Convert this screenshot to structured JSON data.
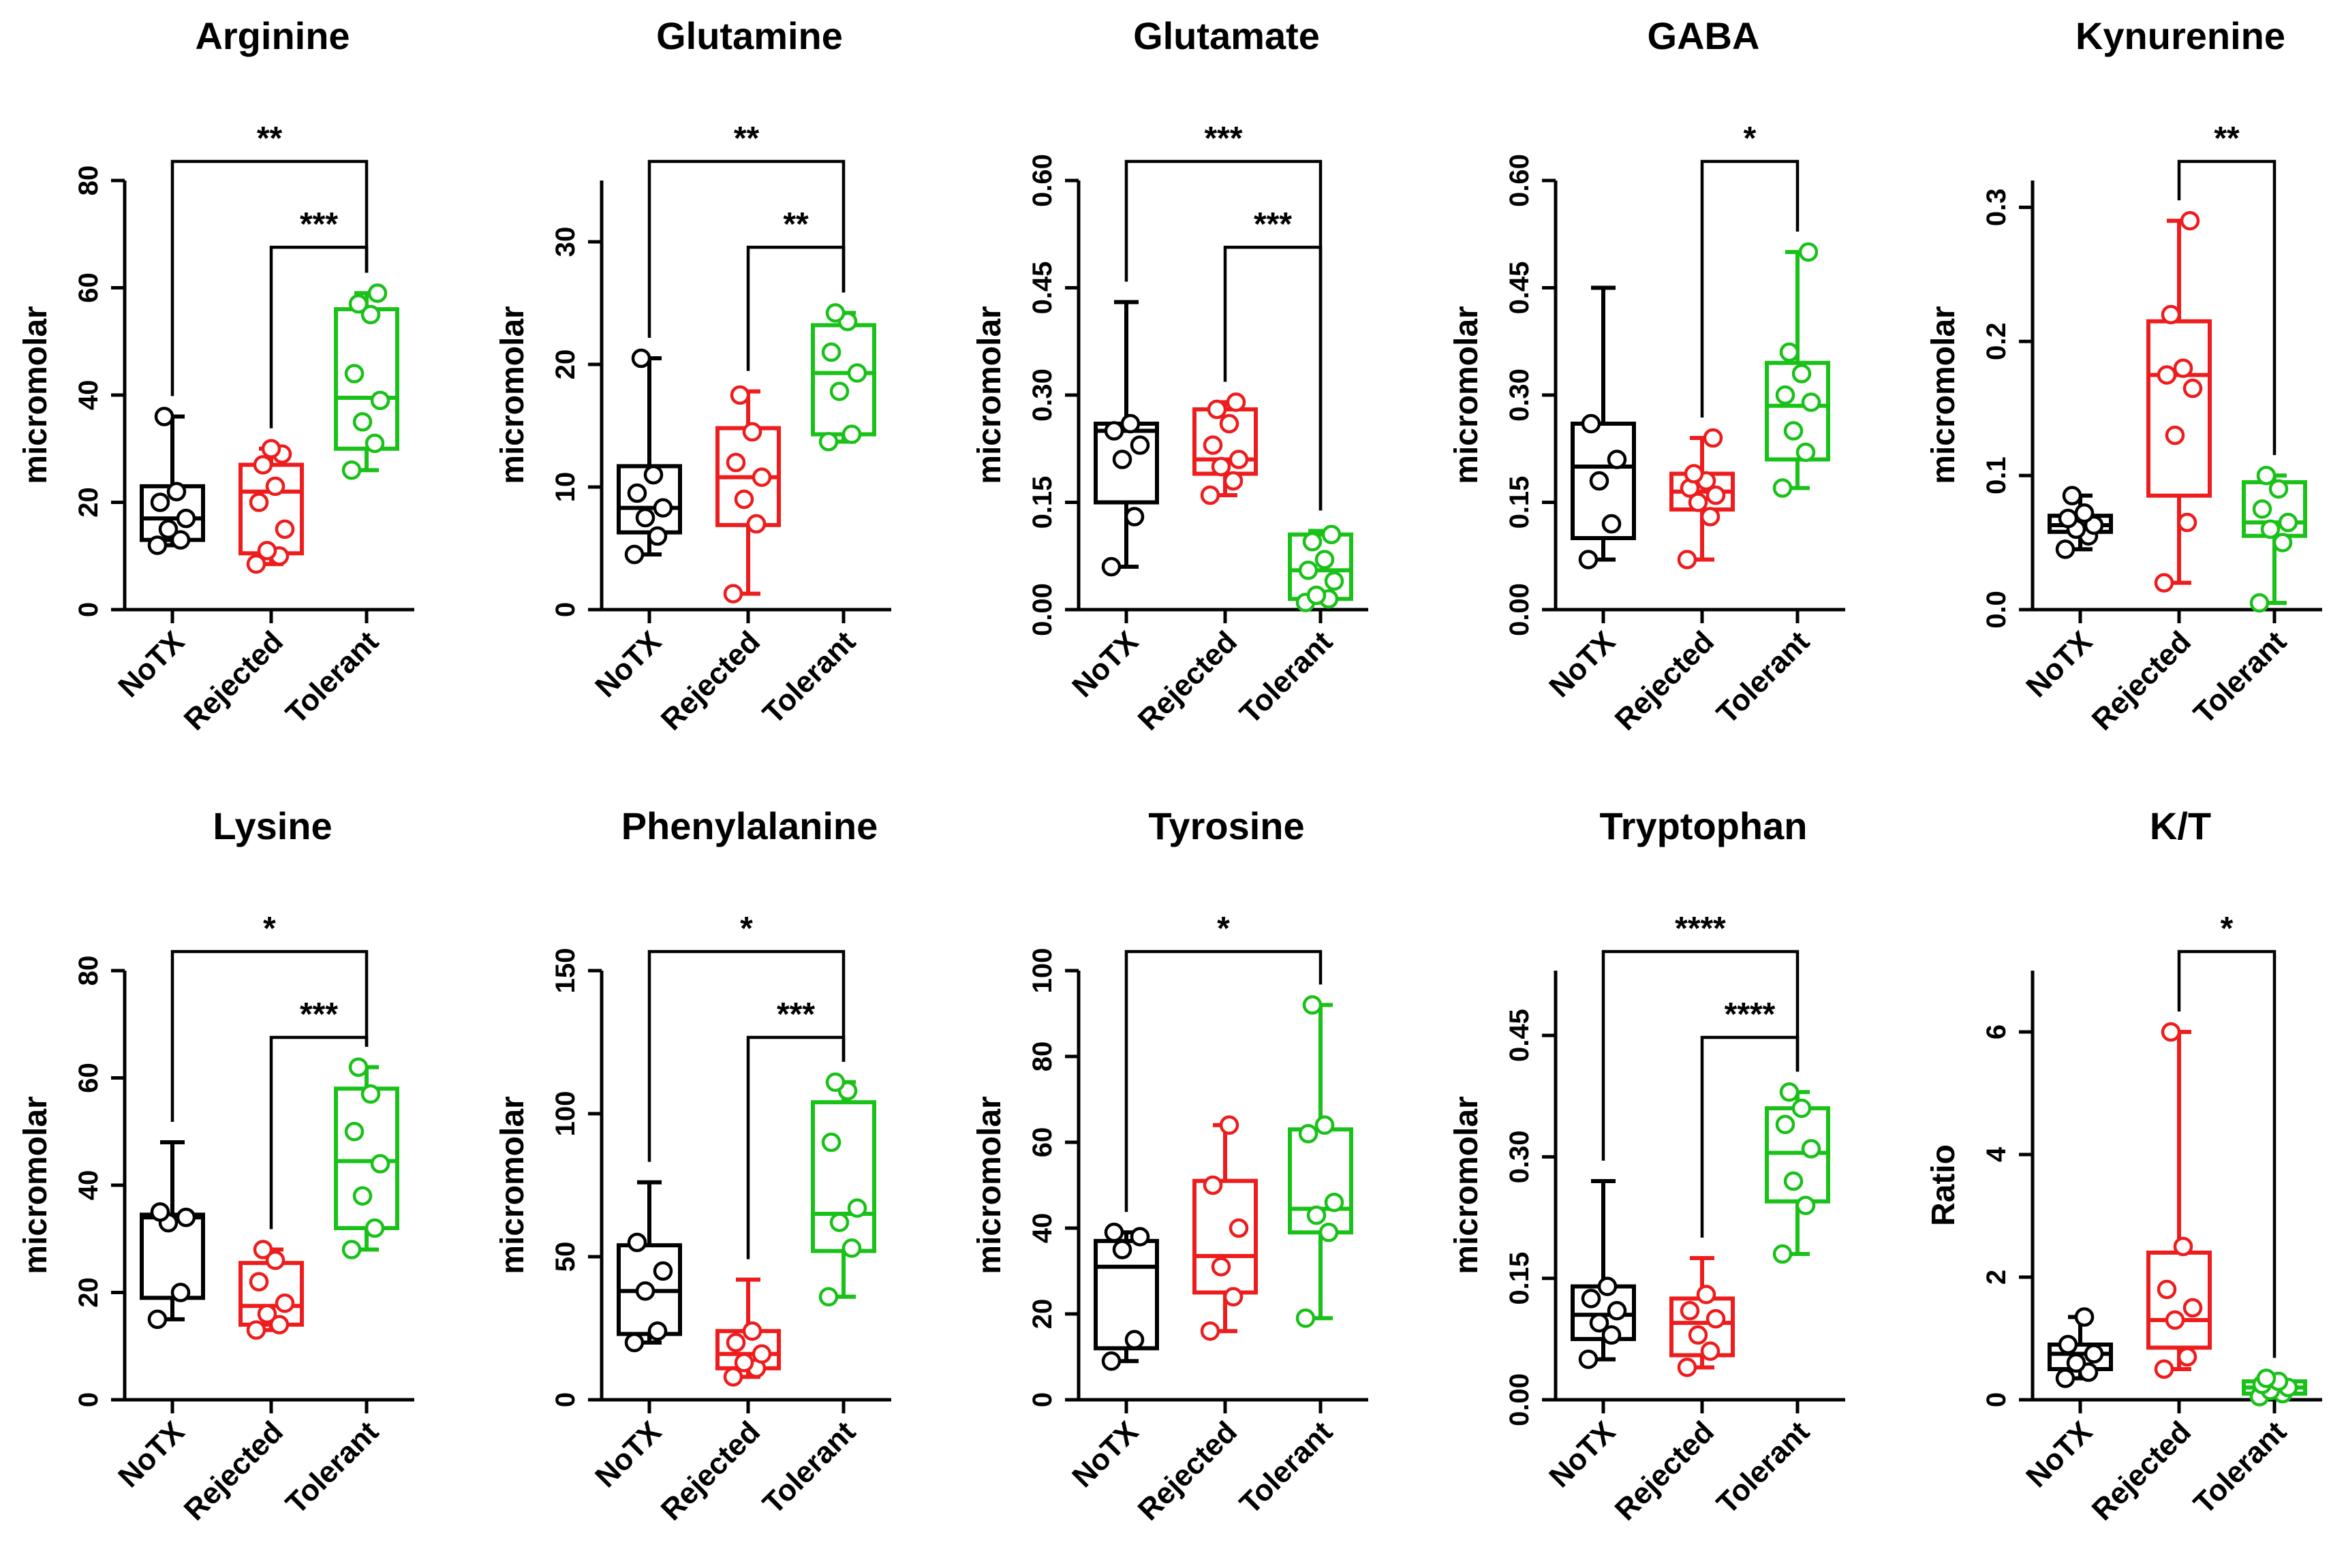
{
  "figure": {
    "group_labels": [
      "NoTX",
      "Rejected",
      "Tolerant"
    ],
    "group_colors": [
      "#000000",
      "#ee1c1c",
      "#19c119"
    ]
  },
  "chart_data": [
    {
      "type": "box",
      "title": "Arginine",
      "ylabel": "micromolar",
      "ylim": [
        0,
        80
      ],
      "yticks": [
        0,
        20,
        40,
        60,
        80
      ],
      "categories": [
        "NoTX",
        "Rejected",
        "Tolerant"
      ],
      "boxes": [
        {
          "min": 12,
          "q1": 13,
          "median": 17,
          "q3": 23,
          "max": 36,
          "points": [
            12,
            13,
            15,
            17,
            20,
            22,
            36
          ]
        },
        {
          "min": 8.5,
          "q1": 10.5,
          "median": 22,
          "q3": 27,
          "max": 30,
          "points": [
            8.5,
            10,
            11,
            15,
            20,
            23,
            27,
            29,
            30
          ]
        },
        {
          "min": 26,
          "q1": 30,
          "median": 39.5,
          "q3": 56,
          "max": 59,
          "points": [
            26,
            31,
            35,
            39,
            44,
            55,
            57,
            59
          ]
        }
      ],
      "significance": [
        {
          "from": 0,
          "to": 2,
          "label": "**"
        },
        {
          "from": 1,
          "to": 2,
          "label": "***"
        }
      ]
    },
    {
      "type": "box",
      "title": "Glutamine",
      "ylabel": "micromolar",
      "ylim": [
        0,
        35
      ],
      "yticks": [
        0,
        10,
        20,
        30
      ],
      "categories": [
        "NoTX",
        "Rejected",
        "Tolerant"
      ],
      "boxes": [
        {
          "min": 4.5,
          "q1": 6.3,
          "median": 8.3,
          "q3": 11.7,
          "max": 20.5,
          "points": [
            4.5,
            6,
            7.5,
            8.3,
            9.5,
            11,
            20.5
          ]
        },
        {
          "min": 1.3,
          "q1": 6.9,
          "median": 10.8,
          "q3": 14.8,
          "max": 17.8,
          "points": [
            1.3,
            7,
            9,
            10.8,
            12,
            14.5,
            17.5
          ]
        },
        {
          "min": 13.7,
          "q1": 14.3,
          "median": 19.3,
          "q3": 23.2,
          "max": 24.2,
          "points": [
            13.7,
            14.3,
            17.8,
            19.3,
            21,
            23.5,
            24.2
          ]
        }
      ],
      "significance": [
        {
          "from": 0,
          "to": 2,
          "label": "**"
        },
        {
          "from": 1,
          "to": 2,
          "label": "**"
        }
      ]
    },
    {
      "type": "box",
      "title": "Glutamate",
      "ylabel": "micromolar",
      "ylim": [
        0,
        0.6
      ],
      "yticks": [
        0.0,
        0.15,
        0.3,
        0.45,
        0.6
      ],
      "decimals": 2,
      "categories": [
        "NoTX",
        "Rejected",
        "Tolerant"
      ],
      "boxes": [
        {
          "min": 0.06,
          "q1": 0.15,
          "median": 0.25,
          "q3": 0.26,
          "max": 0.43,
          "points": [
            0.06,
            0.13,
            0.21,
            0.23,
            0.25,
            0.26
          ]
        },
        {
          "min": 0.16,
          "q1": 0.19,
          "median": 0.21,
          "q3": 0.28,
          "max": 0.29,
          "points": [
            0.16,
            0.18,
            0.2,
            0.21,
            0.23,
            0.26,
            0.28,
            0.29
          ]
        },
        {
          "min": 0.01,
          "q1": 0.015,
          "median": 0.055,
          "q3": 0.105,
          "max": 0.11,
          "points": [
            0.01,
            0.015,
            0.02,
            0.04,
            0.055,
            0.07,
            0.095,
            0.105
          ]
        }
      ],
      "significance": [
        {
          "from": 0,
          "to": 2,
          "label": "***"
        },
        {
          "from": 1,
          "to": 2,
          "label": "***"
        }
      ]
    },
    {
      "type": "box",
      "title": "GABA",
      "ylabel": "micromolar",
      "ylim": [
        0,
        0.6
      ],
      "yticks": [
        0.0,
        0.15,
        0.3,
        0.45,
        0.6
      ],
      "decimals": 2,
      "categories": [
        "NoTX",
        "Rejected",
        "Tolerant"
      ],
      "boxes": [
        {
          "min": 0.07,
          "q1": 0.1,
          "median": 0.2,
          "q3": 0.26,
          "max": 0.45,
          "points": [
            0.07,
            0.12,
            0.18,
            0.21,
            0.26
          ]
        },
        {
          "min": 0.07,
          "q1": 0.14,
          "median": 0.165,
          "q3": 0.19,
          "max": 0.24,
          "points": [
            0.07,
            0.13,
            0.15,
            0.16,
            0.17,
            0.18,
            0.19,
            0.24
          ]
        },
        {
          "min": 0.17,
          "q1": 0.21,
          "median": 0.285,
          "q3": 0.345,
          "max": 0.5,
          "points": [
            0.17,
            0.22,
            0.25,
            0.29,
            0.3,
            0.33,
            0.36,
            0.5
          ]
        }
      ],
      "significance": [
        {
          "from": 1,
          "to": 2,
          "label": "*"
        }
      ]
    },
    {
      "type": "box",
      "title": "Kynurenine",
      "ylabel": "micromolar",
      "ylim": [
        0,
        0.32
      ],
      "yticks": [
        0.0,
        0.1,
        0.2,
        0.3
      ],
      "decimals": 1,
      "categories": [
        "NoTX",
        "Rejected",
        "Tolerant"
      ],
      "boxes": [
        {
          "min": 0.045,
          "q1": 0.058,
          "median": 0.063,
          "q3": 0.07,
          "max": 0.085,
          "points": [
            0.045,
            0.055,
            0.06,
            0.063,
            0.068,
            0.072,
            0.085
          ]
        },
        {
          "min": 0.02,
          "q1": 0.085,
          "median": 0.175,
          "q3": 0.215,
          "max": 0.29,
          "points": [
            0.02,
            0.065,
            0.13,
            0.165,
            0.175,
            0.18,
            0.22,
            0.29
          ]
        },
        {
          "min": 0.005,
          "q1": 0.055,
          "median": 0.065,
          "q3": 0.095,
          "max": 0.1,
          "points": [
            0.005,
            0.05,
            0.06,
            0.065,
            0.075,
            0.09,
            0.1
          ]
        }
      ],
      "significance": [
        {
          "from": 1,
          "to": 2,
          "label": "**"
        }
      ]
    },
    {
      "type": "box",
      "title": "Lysine",
      "ylabel": "micromolar",
      "ylim": [
        0,
        80
      ],
      "yticks": [
        0,
        20,
        40,
        60,
        80
      ],
      "categories": [
        "NoTX",
        "Rejected",
        "Tolerant"
      ],
      "boxes": [
        {
          "min": 15,
          "q1": 19,
          "median": 34,
          "q3": 34.5,
          "max": 48,
          "points": [
            15,
            20,
            33,
            34,
            35
          ]
        },
        {
          "min": 13,
          "q1": 14,
          "median": 17.5,
          "q3": 25.5,
          "max": 28,
          "points": [
            13,
            14,
            16,
            18,
            22,
            26,
            28
          ]
        },
        {
          "min": 28,
          "q1": 32,
          "median": 44.5,
          "q3": 58,
          "max": 62,
          "points": [
            28,
            32,
            38,
            44,
            50,
            57,
            62
          ]
        }
      ],
      "significance": [
        {
          "from": 0,
          "to": 2,
          "label": "*"
        },
        {
          "from": 1,
          "to": 2,
          "label": "***"
        }
      ]
    },
    {
      "type": "box",
      "title": "Phenylalanine",
      "ylabel": "micromolar",
      "ylim": [
        0,
        150
      ],
      "yticks": [
        0,
        50,
        100,
        150
      ],
      "categories": [
        "NoTX",
        "Rejected",
        "Tolerant"
      ],
      "boxes": [
        {
          "min": 20,
          "q1": 23,
          "median": 38,
          "q3": 54,
          "max": 76,
          "points": [
            20,
            24,
            38,
            45,
            55
          ]
        },
        {
          "min": 8,
          "q1": 11,
          "median": 16,
          "q3": 24,
          "max": 42,
          "points": [
            8,
            11,
            13,
            16,
            20,
            24
          ]
        },
        {
          "min": 36,
          "q1": 52,
          "median": 65,
          "q3": 104,
          "max": 111,
          "points": [
            36,
            53,
            62,
            67,
            90,
            108,
            111
          ]
        }
      ],
      "significance": [
        {
          "from": 0,
          "to": 2,
          "label": "*"
        },
        {
          "from": 1,
          "to": 2,
          "label": "***"
        }
      ]
    },
    {
      "type": "box",
      "title": "Tyrosine",
      "ylabel": "micromolar",
      "ylim": [
        0,
        100
      ],
      "yticks": [
        0,
        20,
        40,
        60,
        80,
        100
      ],
      "categories": [
        "NoTX",
        "Rejected",
        "Tolerant"
      ],
      "boxes": [
        {
          "min": 9,
          "q1": 12,
          "median": 31,
          "q3": 37,
          "max": 39,
          "points": [
            9,
            14,
            35,
            38,
            39
          ]
        },
        {
          "min": 16,
          "q1": 25,
          "median": 33.5,
          "q3": 51,
          "max": 64,
          "points": [
            16,
            24,
            31,
            40,
            50,
            64
          ]
        },
        {
          "min": 19,
          "q1": 39,
          "median": 44.5,
          "q3": 63,
          "max": 92,
          "points": [
            19,
            39,
            43,
            46,
            62,
            64,
            92
          ]
        }
      ],
      "significance": [
        {
          "from": 0,
          "to": 2,
          "label": "*"
        }
      ]
    },
    {
      "type": "box",
      "title": "Tryptophan",
      "ylabel": "micromolar",
      "ylim": [
        0,
        0.53
      ],
      "yticks": [
        0.0,
        0.15,
        0.3,
        0.45
      ],
      "decimals": 2,
      "categories": [
        "NoTX",
        "Rejected",
        "Tolerant"
      ],
      "boxes": [
        {
          "min": 0.05,
          "q1": 0.075,
          "median": 0.105,
          "q3": 0.14,
          "max": 0.27,
          "points": [
            0.05,
            0.08,
            0.095,
            0.11,
            0.125,
            0.14
          ]
        },
        {
          "min": 0.04,
          "q1": 0.055,
          "median": 0.095,
          "q3": 0.125,
          "max": 0.175,
          "points": [
            0.04,
            0.06,
            0.08,
            0.1,
            0.11,
            0.13
          ]
        },
        {
          "min": 0.18,
          "q1": 0.245,
          "median": 0.305,
          "q3": 0.36,
          "max": 0.38,
          "points": [
            0.18,
            0.24,
            0.27,
            0.31,
            0.34,
            0.36,
            0.38
          ]
        }
      ],
      "significance": [
        {
          "from": 0,
          "to": 2,
          "label": "****"
        },
        {
          "from": 1,
          "to": 2,
          "label": "****"
        }
      ]
    },
    {
      "type": "box",
      "title": "K/T",
      "ylabel": "Ratio",
      "ylim": [
        0,
        7
      ],
      "yticks": [
        0,
        2,
        4,
        6
      ],
      "categories": [
        "NoTX",
        "Rejected",
        "Tolerant"
      ],
      "boxes": [
        {
          "min": 0.35,
          "q1": 0.5,
          "median": 0.75,
          "q3": 0.9,
          "max": 1.35,
          "points": [
            0.35,
            0.45,
            0.6,
            0.75,
            0.9,
            1.35
          ]
        },
        {
          "min": 0.5,
          "q1": 0.85,
          "median": 1.3,
          "q3": 2.4,
          "max": 6.0,
          "points": [
            0.5,
            0.7,
            1.3,
            1.5,
            1.8,
            2.5,
            6.0
          ]
        },
        {
          "min": 0.05,
          "q1": 0.1,
          "median": 0.2,
          "q3": 0.3,
          "max": 0.35,
          "points": [
            0.05,
            0.1,
            0.15,
            0.2,
            0.25,
            0.3,
            0.35
          ]
        }
      ],
      "significance": [
        {
          "from": 1,
          "to": 2,
          "label": "*"
        }
      ]
    }
  ]
}
